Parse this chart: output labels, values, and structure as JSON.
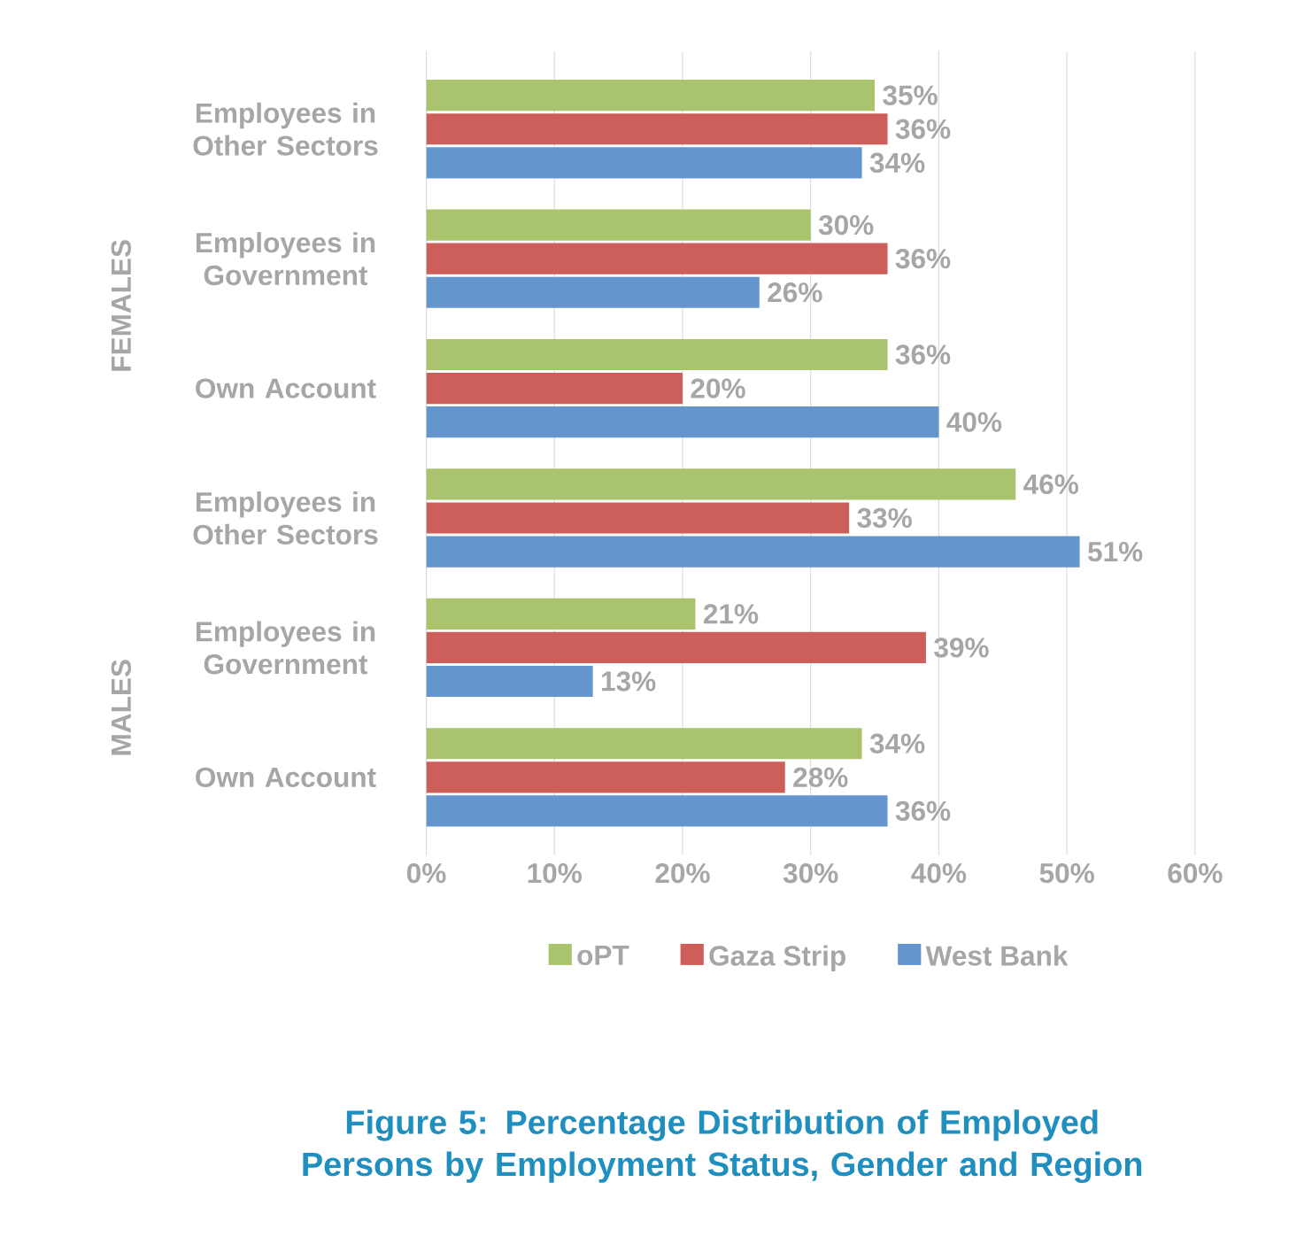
{
  "chart_data": {
    "type": "bar",
    "orientation": "horizontal",
    "title": "Figure 5: Percentage Distribution of Employed Persons by Employment Status, Gender and Region",
    "categories": [
      "Employees in Other Sectors",
      "Employees in Government",
      "Own Account",
      "Employees in Other Sectors",
      "Employees in Government",
      "Own Account"
    ],
    "annotations": [
      "FEMALES",
      "MALES"
    ],
    "series": [
      {
        "name": "oPT",
        "color": "#a9c46c",
        "values": [
          35,
          30,
          36,
          46,
          21,
          34
        ],
        "value_labels": [
          "35%",
          "30%",
          "36%",
          "46%",
          "21%",
          "34%"
        ]
      },
      {
        "name": "Gaza Strip",
        "color": "#cd5f5a",
        "values": [
          36,
          36,
          20,
          33,
          39,
          28
        ],
        "value_labels": [
          "36%",
          "36%",
          "20%",
          "33%",
          "39%",
          "28%"
        ]
      },
      {
        "name": "West Bank",
        "color": "#6495cd",
        "values": [
          34,
          26,
          40,
          51,
          13,
          36
        ],
        "value_labels": [
          "34%",
          "26%",
          "40%",
          "51%",
          "13%",
          "36%"
        ]
      }
    ],
    "xlim": [
      0,
      60
    ],
    "xticks": [
      {
        "value": 0,
        "label": "0%"
      },
      {
        "value": 10,
        "label": "10%"
      },
      {
        "value": 20,
        "label": "20%"
      },
      {
        "value": 30,
        "label": "30%"
      },
      {
        "value": 40,
        "label": "40%"
      },
      {
        "value": 50,
        "label": "50%"
      },
      {
        "value": 60,
        "label": "60%"
      }
    ],
    "grid": "x",
    "legend": "bottom"
  }
}
